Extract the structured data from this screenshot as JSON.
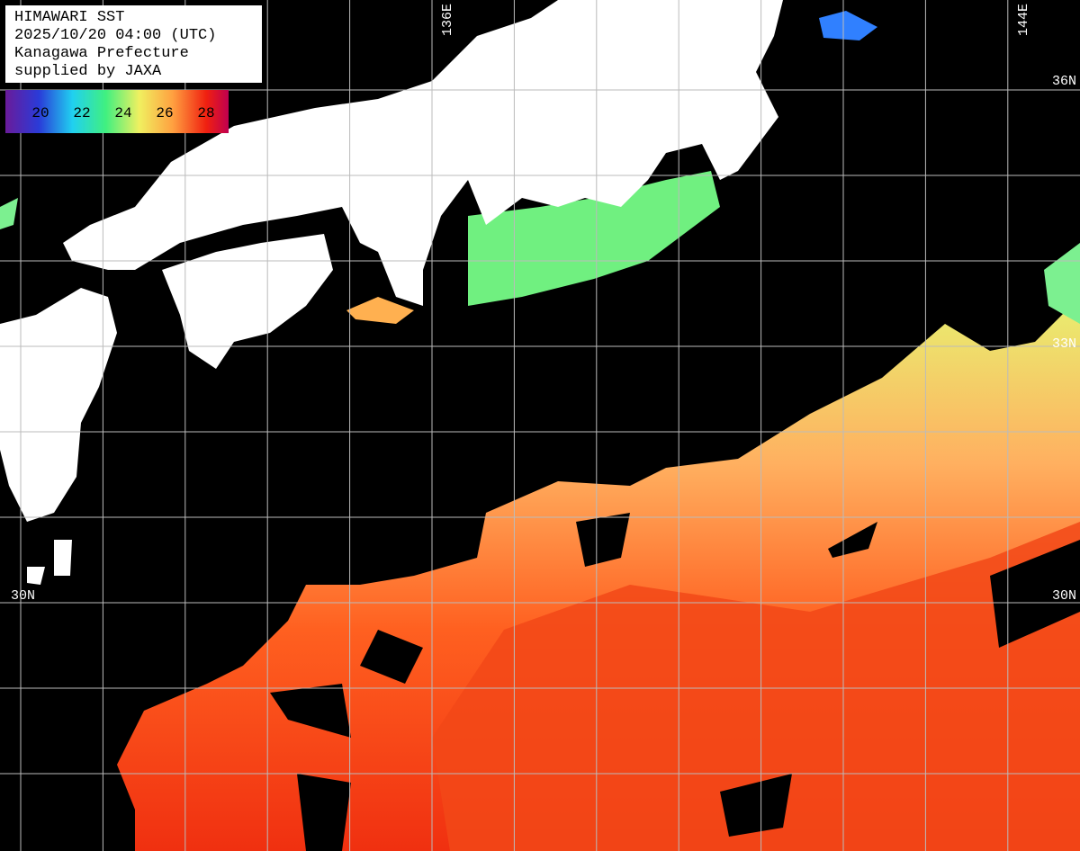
{
  "info": {
    "lines": [
      "HIMAWARI SST",
      "2025/10/20 04:00 (UTC)",
      "Kanagawa Prefecture",
      "supplied by JAXA"
    ]
  },
  "colorbar": {
    "labels": [
      "20",
      "22",
      "24",
      "26",
      "28"
    ]
  },
  "grid": {
    "longitude_labels": [
      "136E",
      "144E"
    ],
    "latitude_labels": [
      "36N",
      "33N",
      "30N",
      "30N"
    ]
  }
}
